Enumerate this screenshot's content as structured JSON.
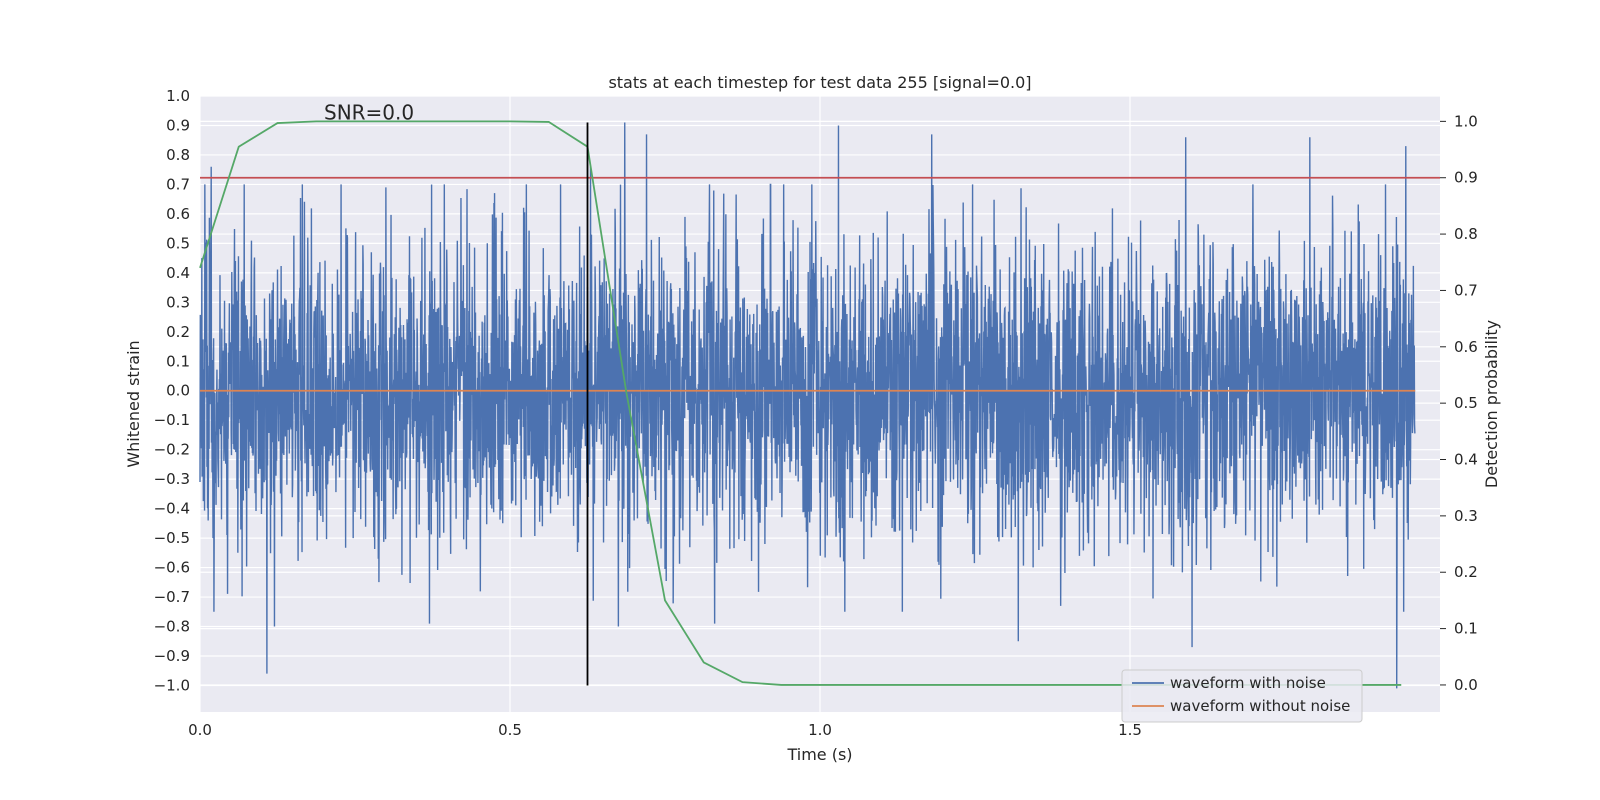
{
  "chart_data": {
    "type": "line",
    "title": "stats at each timestep for test data 255 [signal=0.0]",
    "xlabel": "Time (s)",
    "ylabel": "Whitened strain",
    "ylabel_right": "Detection probability",
    "xlim": [
      0.0,
      2.0
    ],
    "ylim": [
      -1.09,
      1.0
    ],
    "ylim_right": [
      -0.048,
      1.045
    ],
    "xticks": [
      0.0,
      0.5,
      1.0,
      1.5
    ],
    "xtick_labels": [
      "0.0",
      "0.5",
      "1.0",
      "1.5"
    ],
    "yticks": [
      -1.0,
      -0.9,
      -0.8,
      -0.7,
      -0.6,
      -0.5,
      -0.4,
      -0.3,
      -0.2,
      -0.1,
      0.0,
      0.1,
      0.2,
      0.3,
      0.4,
      0.5,
      0.6,
      0.7,
      0.8,
      0.9,
      1.0
    ],
    "ytick_labels": [
      "−1.0",
      "−0.9",
      "−0.8",
      "−0.7",
      "−0.6",
      "−0.5",
      "−0.4",
      "−0.3",
      "−0.2",
      "−0.1",
      "0.0",
      "0.1",
      "0.2",
      "0.3",
      "0.4",
      "0.5",
      "0.6",
      "0.7",
      "0.8",
      "0.9",
      "1.0"
    ],
    "yticks_right": [
      0.0,
      0.1,
      0.2,
      0.3,
      0.4,
      0.5,
      0.6,
      0.7,
      0.8,
      0.9,
      1.0
    ],
    "ytick_labels_right": [
      "0.0",
      "0.1",
      "0.2",
      "0.3",
      "0.4",
      "0.5",
      "0.6",
      "0.7",
      "0.8",
      "0.9",
      "1.0"
    ],
    "annotation": "SNR=0.0",
    "annotation_at": [
      0.2,
      0.92
    ],
    "threshold_line": {
      "y_right": 0.9,
      "color": "#c44e52"
    },
    "event_marker": {
      "x": 0.625,
      "y_from": -1.0,
      "y_to": 0.91,
      "color": "#000000"
    },
    "series": [
      {
        "name": "waveform with noise",
        "color": "#4c72b0",
        "axis": "left",
        "sample_rate": 2048,
        "x_range": [
          0.0,
          1.96
        ],
        "noise_std": 0.25,
        "peaks": [
          {
            "x": 0.003,
            "y": 0.45
          },
          {
            "x": 0.01,
            "y": 0.48
          },
          {
            "x": 0.018,
            "y": 0.76
          },
          {
            "x": 0.108,
            "y": -0.96
          },
          {
            "x": 0.12,
            "y": -0.8
          },
          {
            "x": 0.3,
            "y": 0.69
          },
          {
            "x": 0.37,
            "y": -0.79
          },
          {
            "x": 0.685,
            "y": 0.91
          },
          {
            "x": 0.72,
            "y": 0.87
          },
          {
            "x": 0.675,
            "y": -0.8
          },
          {
            "x": 0.83,
            "y": -0.79
          },
          {
            "x": 1.03,
            "y": 0.9
          },
          {
            "x": 1.18,
            "y": 0.87
          },
          {
            "x": 1.32,
            "y": -0.85
          },
          {
            "x": 1.59,
            "y": 0.86
          },
          {
            "x": 1.79,
            "y": 0.86
          },
          {
            "x": 1.6,
            "y": -0.87
          },
          {
            "x": 1.93,
            "y": -1.01
          },
          {
            "x": 1.945,
            "y": 0.83
          },
          {
            "x": 1.04,
            "y": -0.75
          },
          {
            "x": 0.63,
            "y": 0.76
          }
        ]
      },
      {
        "name": "waveform without noise",
        "color": "#dd8452",
        "axis": "left",
        "x": [
          0.0,
          1.96
        ],
        "y": [
          0.0,
          0.0
        ]
      },
      {
        "name": "detection probability",
        "color": "#55a868",
        "axis": "right",
        "x": [
          0.0,
          0.0625,
          0.125,
          0.1875,
          0.25,
          0.3125,
          0.375,
          0.4375,
          0.5,
          0.5625,
          0.625,
          0.6875,
          0.75,
          0.8125,
          0.875,
          0.9375,
          1.0,
          1.25,
          1.5,
          1.75,
          1.9375
        ],
        "y": [
          0.74,
          0.955,
          0.997,
          1.0,
          1.0,
          1.0,
          1.0,
          1.0,
          1.0,
          0.999,
          0.955,
          0.52,
          0.15,
          0.04,
          0.005,
          0.0,
          0.0,
          0.0,
          0.0,
          0.0,
          0.0
        ]
      }
    ],
    "legend": {
      "placement": "lower-right",
      "entries": [
        {
          "label": "waveform with noise",
          "color": "#4c72b0"
        },
        {
          "label": "waveform without noise",
          "color": "#dd8452"
        }
      ]
    },
    "style": {
      "face": "#eaeaf2",
      "grid": "#ffffff",
      "grid_on": true
    }
  }
}
